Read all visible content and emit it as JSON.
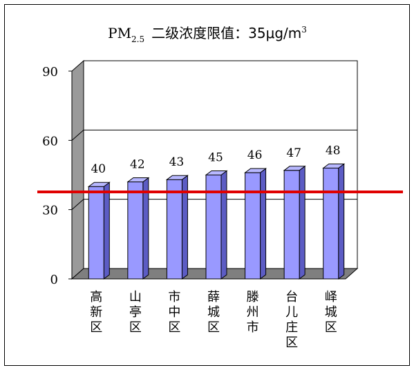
{
  "chart_data": {
    "type": "bar",
    "title": {
      "prefix": "PM",
      "subscript": "2.5",
      "main": "二级浓度限值：35μg/m",
      "superscript": "3"
    },
    "categories": [
      "高新区",
      "山亭区",
      "市中区",
      "薛城区",
      "滕州市",
      "台儿庄区",
      "峄城区"
    ],
    "values": [
      40,
      42,
      43,
      45,
      46,
      47,
      48
    ],
    "yticks": [
      0,
      30,
      60,
      90
    ],
    "ylim": [
      0,
      90
    ],
    "reference_line": {
      "value": 35,
      "color": "#e00000"
    },
    "colors": {
      "bar_front": "#9999ff",
      "bar_side": "#5c5cc4",
      "bar_top": "#b8b8ff",
      "wall": "#ffffff",
      "wall_side": "#9a9a9a",
      "floor": "#7f7f7f"
    },
    "grid": true,
    "legend": "none"
  }
}
